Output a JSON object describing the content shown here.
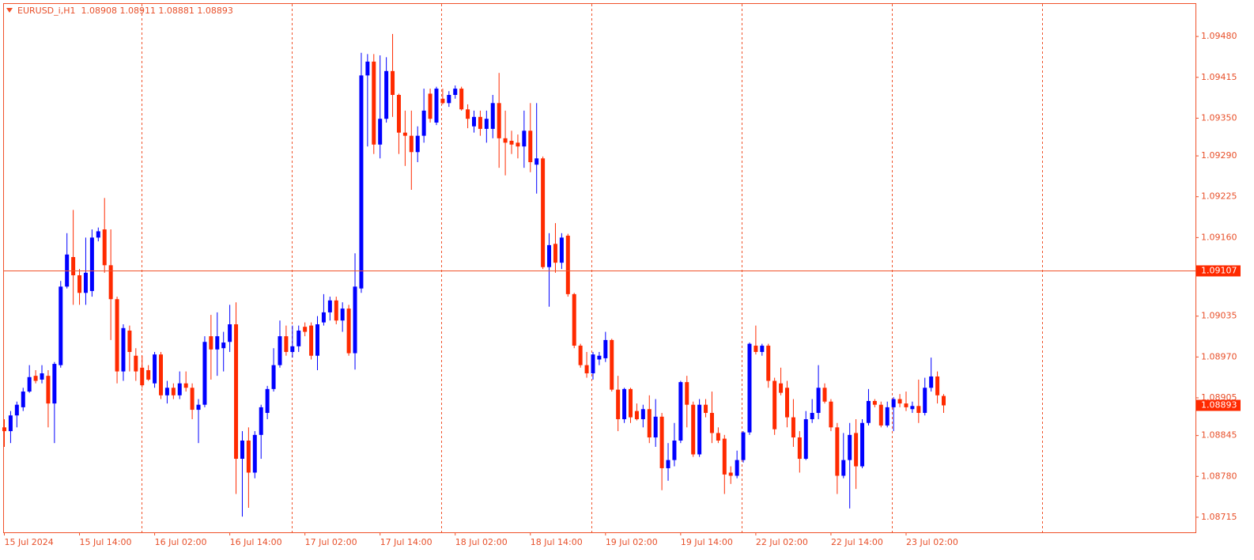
{
  "chart_data": {
    "type": "candlestick",
    "title": "EURUSD_i,H1  1.08908 1.08911 1.08881 1.08893",
    "up_color": "#0000ff",
    "down_color": "#ff2a00",
    "ylim": [
      1.08691,
      1.09533
    ],
    "yticks": [
      {
        "value": 1.0948,
        "label": "1.09480"
      },
      1.09415,
      {
        "value": 1.0935,
        "label": "1.09350"
      },
      {
        "value": 1.0929,
        "label": "1.09290"
      },
      1.09225,
      {
        "value": 1.0916,
        "label": "1.09160"
      },
      1.09035,
      {
        "value": 1.0897,
        "label": "1.08970"
      },
      1.08905,
      1.08845,
      {
        "value": 1.0878,
        "label": "1.08780"
      },
      1.08715
    ],
    "price_line": 1.09107,
    "last_price": 1.08893,
    "categories": [
      "15 Jul 2024",
      null,
      null,
      null,
      null,
      null,
      null,
      null,
      null,
      null,
      null,
      null,
      "15 Jul 14:00",
      null,
      null,
      null,
      null,
      null,
      null,
      null,
      null,
      null,
      null,
      null,
      "16 Jul 02:00",
      null,
      null,
      null,
      null,
      null,
      null,
      null,
      null,
      null,
      null,
      null,
      "16 Jul 14:00",
      null,
      null,
      null,
      null,
      null,
      null,
      null,
      null,
      null,
      null,
      null,
      "17 Jul 02:00",
      null,
      null,
      null,
      null,
      null,
      null,
      null,
      null,
      null,
      null,
      null,
      "17 Jul 14:00",
      null,
      null,
      null,
      null,
      null,
      null,
      null,
      null,
      null,
      null,
      null,
      "18 Jul 02:00",
      null,
      null,
      null,
      null,
      null,
      null,
      null,
      null,
      null,
      null,
      null,
      "18 Jul 14:00",
      null,
      null,
      null,
      null,
      null,
      null,
      null,
      null,
      null,
      null,
      null,
      "19 Jul 02:00",
      null,
      null,
      null,
      null,
      null,
      null,
      null,
      null,
      null,
      null,
      null,
      "19 Jul 14:00",
      null,
      null,
      null,
      null,
      null,
      null,
      null,
      null,
      null,
      null,
      null,
      "22 Jul 02:00",
      null,
      null,
      null,
      null,
      null,
      null,
      null,
      null,
      null,
      null,
      null,
      "22 Jul 14:00",
      null,
      null,
      null,
      null,
      null,
      null,
      null,
      null,
      null,
      null,
      null,
      "23 Jul 02:00",
      null,
      null,
      null,
      null,
      null,
      null
    ],
    "open": [
      1.08858,
      1.08852,
      1.08877,
      1.0889,
      1.08915,
      1.0894,
      1.08934,
      1.0894,
      1.08896,
      1.08957,
      1.09082,
      1.09129,
      1.091,
      1.09072,
      1.09075,
      1.0916,
      1.09173,
      1.09116,
      1.09062,
      1.08947,
      1.09012,
      1.08972,
      1.08953,
      1.08949,
      1.08928,
      1.08974,
      1.08909,
      1.08921,
      1.08909,
      1.08928,
      1.08921,
      1.08886,
      1.08894,
      1.09003,
      1.08982,
      1.08984,
      1.08994,
      1.09022,
      1.08808,
      1.08837,
      1.08786,
      1.08846,
      1.08881,
      1.08919,
      1.08957,
      1.09003,
      1.08978,
      1.08987,
      1.09018,
      1.0902,
      1.08972,
      1.09025,
      1.09041,
      1.0906,
      1.09028,
      1.09047,
      1.08976,
      1.09079,
      1.09418,
      1.0944,
      1.09308,
      1.09349,
      1.09425,
      1.09387,
      1.09327,
      1.09322,
      1.09296,
      1.09322,
      1.09389,
      1.09343,
      1.09381,
      1.09374,
      1.09387,
      1.09397,
      1.09364,
      1.09337,
      1.09352,
      1.09333,
      1.09333,
      1.09374,
      1.09318,
      1.09314,
      1.09311,
      1.09305,
      1.0933,
      1.09276,
      1.09286,
      1.09113,
      1.0915,
      1.0912,
      1.09163,
      1.0907,
      1.08988,
      1.08957,
      1.08944,
      1.08966,
      1.08968,
      1.08997,
      1.08918,
      1.08871,
      1.08919,
      1.08884,
      1.08871,
      1.08887,
      1.08842,
      1.08875,
      1.08793,
      1.08806,
      1.08837,
      1.0893,
      1.08894,
      1.08815,
      1.08894,
      1.08881,
      1.08849,
      1.0884,
      1.08786,
      1.08781,
      1.08806,
      1.0885,
      1.08988,
      1.08978,
      1.08988,
      1.08932,
      1.08928,
      1.08921,
      1.08874,
      1.08842,
      1.08808,
      1.08871,
      1.08881,
      1.08921,
      1.08899,
      1.08858,
      1.08781,
      1.08806,
      1.08849,
      1.08796,
      1.08865,
      1.089,
      1.08894,
      1.08861,
      1.0889,
      1.08903,
      1.08896,
      1.08887,
      1.08892,
      1.08881,
      1.08921,
      1.08939,
      1.08908
    ],
    "high": [
      1.08871,
      1.08884,
      1.08899,
      1.08921,
      1.08957,
      1.08949,
      1.08957,
      1.08949,
      1.08962,
      1.09091,
      1.09167,
      1.09204,
      1.0911,
      1.0916,
      1.09173,
      1.09176,
      1.09223,
      1.09173,
      1.09066,
      1.09022,
      1.0902,
      1.08984,
      1.08972,
      1.08957,
      1.08978,
      1.08978,
      1.08932,
      1.08928,
      1.08947,
      1.08947,
      1.08928,
      1.08903,
      1.09003,
      1.09037,
      1.09041,
      1.0901,
      1.09053,
      1.09057,
      1.08852,
      1.08858,
      1.08852,
      1.08894,
      1.08924,
      1.08984,
      1.09028,
      1.0902,
      1.0902,
      1.0902,
      1.09025,
      1.09025,
      1.09035,
      1.0907,
      1.09066,
      1.09066,
      1.09057,
      1.09053,
      1.09135,
      1.09454,
      1.09452,
      1.09452,
      1.0945,
      1.09447,
      1.09484,
      1.09389,
      1.09362,
      1.09362,
      1.09337,
      1.09397,
      1.09397,
      1.094,
      1.09397,
      1.09393,
      1.09402,
      1.094,
      1.09372,
      1.09362,
      1.09362,
      1.09362,
      1.09387,
      1.09422,
      1.09362,
      1.0933,
      1.09324,
      1.09362,
      1.09374,
      1.09374,
      1.09289,
      1.09167,
      1.09183,
      1.09167,
      1.09166,
      1.09072,
      1.08991,
      1.08978,
      1.08978,
      1.08978,
      1.0901,
      1.08999,
      1.0894,
      1.08921,
      1.08921,
      1.08896,
      1.08894,
      1.08909,
      1.08903,
      1.08881,
      1.08833,
      1.08865,
      1.08932,
      1.0894,
      1.08899,
      1.08903,
      1.08903,
      1.08915,
      1.08858,
      1.08846,
      1.08796,
      1.08821,
      1.08852,
      1.08993,
      1.0902,
      1.08991,
      1.08991,
      1.08937,
      1.08953,
      1.08932,
      1.08903,
      1.08852,
      1.08884,
      1.08903,
      1.08957,
      1.08928,
      1.08903,
      1.08865,
      1.08849,
      1.08865,
      1.08871,
      1.08871,
      1.08919,
      1.08903,
      1.08899,
      1.08899,
      1.08906,
      1.08911,
      1.08915,
      1.08899,
      1.08934,
      1.08937,
      1.08969,
      1.08947,
      1.08911
    ],
    "low": [
      1.08827,
      1.08833,
      1.08858,
      1.08884,
      1.08913,
      1.08928,
      1.08928,
      1.08858,
      1.08833,
      1.08953,
      1.09079,
      1.09053,
      1.09053,
      1.09053,
      1.09066,
      1.09154,
      1.09104,
      1.08997,
      1.08928,
      1.08932,
      1.08947,
      1.08932,
      1.08921,
      1.08932,
      1.08921,
      1.08903,
      1.08896,
      1.08903,
      1.08903,
      1.08915,
      1.08871,
      1.08833,
      1.0889,
      1.08934,
      1.0894,
      1.08947,
      1.08978,
      1.08752,
      1.08716,
      1.0873,
      1.08777,
      1.08808,
      1.08871,
      1.08915,
      1.08953,
      1.08972,
      1.08969,
      1.08978,
      1.09003,
      1.08966,
      1.08949,
      1.0902,
      1.09028,
      1.09022,
      1.0901,
      1.08972,
      1.0895,
      1.09072,
      1.09305,
      1.09293,
      1.09286,
      1.09343,
      1.09352,
      1.09293,
      1.09274,
      1.09236,
      1.0928,
      1.09311,
      1.09343,
      1.09339,
      1.09372,
      1.09368,
      1.09381,
      1.09362,
      1.09334,
      1.09327,
      1.09322,
      1.09311,
      1.09318,
      1.09271,
      1.09259,
      1.09293,
      1.09286,
      1.09271,
      1.09264,
      1.0923,
      1.0911,
      1.0905,
      1.09104,
      1.0911,
      1.09066,
      1.08984,
      1.08953,
      1.08937,
      1.08934,
      1.08957,
      1.08962,
      1.08915,
      1.08852,
      1.08865,
      1.08865,
      1.08869,
      1.08858,
      1.08833,
      1.08827,
      1.08758,
      1.08773,
      1.08796,
      1.08833,
      1.08858,
      1.08811,
      1.08811,
      1.08874,
      1.08833,
      1.08833,
      1.08752,
      1.08768,
      1.08777,
      1.08802,
      1.08846,
      1.08974,
      1.08972,
      1.08921,
      1.08846,
      1.08909,
      1.08858,
      1.08827,
      1.08786,
      1.08806,
      1.08865,
      1.08871,
      1.08896,
      1.08852,
      1.08752,
      1.08777,
      1.08729,
      1.0876,
      1.08793,
      1.08861,
      1.0889,
      1.08858,
      1.08858,
      1.08852,
      1.0889,
      1.08884,
      1.08881,
      1.08865,
      1.08877,
      1.08915,
      1.08896,
      1.08881
    ],
    "close": [
      1.08852,
      1.08877,
      1.08894,
      1.08915,
      1.08938,
      1.08932,
      1.08944,
      1.08896,
      1.08959,
      1.09082,
      1.09133,
      1.091,
      1.09072,
      1.09104,
      1.0916,
      1.0917,
      1.09116,
      1.09062,
      1.08947,
      1.09016,
      1.08978,
      1.08947,
      1.08925,
      1.08934,
      1.08974,
      1.08909,
      1.08921,
      1.08909,
      1.08928,
      1.08921,
      1.08886,
      1.08894,
      1.08994,
      1.08982,
      1.09003,
      1.08993,
      1.09022,
      1.08808,
      1.08837,
      1.08786,
      1.08846,
      1.0889,
      1.08919,
      1.08957,
      1.09003,
      1.08978,
      1.08987,
      1.09012,
      1.0901,
      1.08972,
      1.09022,
      1.09041,
      1.0906,
      1.09028,
      1.09047,
      1.08976,
      1.09082,
      1.09418,
      1.0944,
      1.09308,
      1.09349,
      1.09425,
      1.09387,
      1.09327,
      1.09322,
      1.09296,
      1.09322,
      1.09362,
      1.09349,
      1.09397,
      1.09374,
      1.09387,
      1.09397,
      1.09364,
      1.09349,
      1.09352,
      1.09333,
      1.09349,
      1.09374,
      1.09318,
      1.09311,
      1.09308,
      1.09305,
      1.0933,
      1.0928,
      1.09286,
      1.09113,
      1.09148,
      1.0912,
      1.0916,
      1.0907,
      1.08988,
      1.08957,
      1.08944,
      1.08974,
      1.08972,
      1.08997,
      1.08918,
      1.08871,
      1.08919,
      1.08874,
      1.08871,
      1.08887,
      1.08842,
      1.08875,
      1.08793,
      1.08806,
      1.08837,
      1.0893,
      1.08894,
      1.08815,
      1.08894,
      1.08881,
      1.08849,
      1.08837,
      1.08783,
      1.08781,
      1.08806,
      1.0885,
      1.08991,
      1.08978,
      1.08988,
      1.08932,
      1.08855,
      1.08913,
      1.08874,
      1.08842,
      1.08808,
      1.08871,
      1.08881,
      1.08921,
      1.08899,
      1.08858,
      1.08781,
      1.08806,
      1.08846,
      1.08796,
      1.08865,
      1.089,
      1.08894,
      1.08861,
      1.0889,
      1.08903,
      1.08896,
      1.0889,
      1.08892,
      1.08881,
      1.08921,
      1.08939,
      1.08909,
      1.08893
    ]
  }
}
